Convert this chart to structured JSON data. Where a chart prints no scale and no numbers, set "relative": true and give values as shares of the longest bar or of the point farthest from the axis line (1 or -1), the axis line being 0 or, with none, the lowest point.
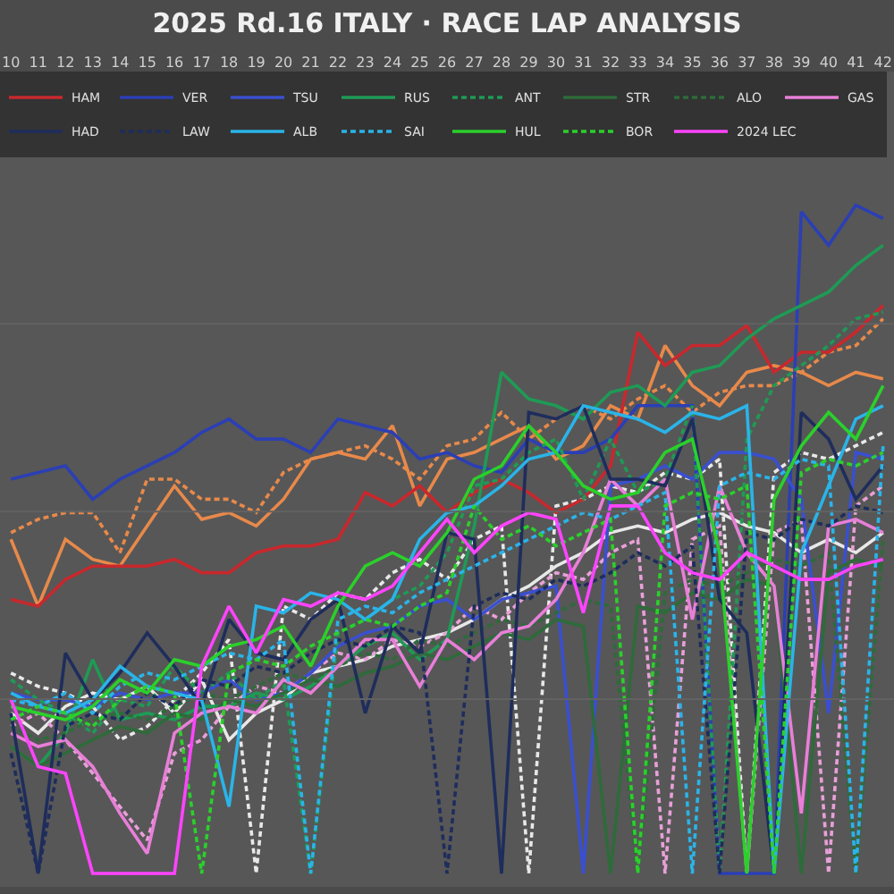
{
  "chart_data": {
    "type": "line",
    "title": "2025 Rd.16 ITALY · RACE LAP ANALYSIS",
    "relative": true,
    "grid": "y",
    "legend": "top left",
    "marker": "none",
    "x": [
      10,
      11,
      12,
      13,
      14,
      15,
      16,
      17,
      18,
      19,
      20,
      21,
      22,
      23,
      24,
      25,
      26,
      27,
      28,
      29,
      30,
      31,
      32,
      33,
      34,
      35,
      36,
      37,
      38,
      39,
      40,
      41,
      42
    ],
    "xlim": [
      9.6,
      42.4
    ],
    "xticks": [
      10,
      11,
      12,
      13,
      14,
      15,
      16,
      17,
      18,
      19,
      20,
      21,
      22,
      23,
      24,
      25,
      26,
      27,
      28,
      29,
      30,
      31,
      32,
      33,
      34,
      35,
      36,
      37,
      38,
      39,
      40,
      41,
      42
    ],
    "series": [
      {
        "color": "#e8894a",
        "line_style": "solid",
        "values": [
          0.5,
          0.4,
          0.5,
          0.47,
          0.46,
          0.52,
          0.58,
          0.53,
          0.54,
          0.52,
          0.56,
          0.62,
          0.63,
          0.62,
          0.67,
          0.55,
          0.62,
          0.63,
          0.65,
          0.67,
          0.62,
          0.64,
          0.7,
          0.68,
          0.79,
          0.73,
          0.7,
          0.75,
          0.76,
          0.75,
          0.73,
          0.75,
          0.74
        ]
      },
      {
        "color": "#e8894a",
        "line_style": "dashed",
        "values": [
          0.51,
          0.53,
          0.54,
          0.54,
          0.48,
          0.59,
          0.59,
          0.56,
          0.56,
          0.54,
          0.6,
          0.62,
          0.63,
          0.64,
          0.62,
          0.59,
          0.64,
          0.65,
          0.69,
          0.65,
          0.68,
          0.7,
          0.68,
          0.71,
          0.73,
          0.69,
          0.72,
          0.73,
          0.73,
          0.75,
          0.78,
          0.79,
          0.83
        ]
      },
      {
        "color": "#e8e8e8",
        "line_style": "solid",
        "values": [
          0.24,
          0.21,
          0.25,
          0.27,
          0.26,
          0.28,
          0.24,
          0.29,
          0.2,
          0.24,
          0.26,
          0.3,
          0.31,
          0.32,
          0.34,
          0.35,
          0.36,
          0.38,
          0.41,
          0.43,
          0.46,
          0.48,
          0.51,
          0.52,
          0.51,
          0.53,
          0.54,
          0.52,
          0.51,
          0.48,
          0.5,
          0.48,
          0.51
        ]
      },
      {
        "color": "#e8e8e8",
        "line_style": "dashed",
        "values": [
          0.3,
          0.28,
          0.27,
          0.25,
          0.2,
          0.22,
          0.26,
          0.3,
          0.35,
          0.0,
          0.4,
          0.38,
          0.42,
          0.41,
          0.45,
          0.47,
          0.44,
          0.5,
          0.52,
          0.0,
          0.55,
          0.56,
          0.58,
          0.57,
          0.6,
          0.59,
          0.62,
          0.0,
          0.6,
          0.63,
          0.62,
          0.64,
          0.66
        ]
      },
      {
        "color": "#e8a0d8",
        "line_style": "dashed",
        "values": [
          0.22,
          0.24,
          0.2,
          0.15,
          0.1,
          0.05,
          0.18,
          0.2,
          0.25,
          0.28,
          0.27,
          0.3,
          0.33,
          0.32,
          0.35,
          0.34,
          0.36,
          0.4,
          0.38,
          0.42,
          0.45,
          0.44,
          0.48,
          0.5,
          0.0,
          0.5,
          0.52,
          0.0,
          0.51,
          0.53,
          0.0,
          0.55,
          0.58
        ]
      },
      {
        "name": "HAM",
        "color": "#c8282d",
        "line_style": "solid",
        "values": [
          0.41,
          0.4,
          0.44,
          0.46,
          0.46,
          0.46,
          0.47,
          0.45,
          0.45,
          0.48,
          0.49,
          0.49,
          0.5,
          0.57,
          0.55,
          0.58,
          0.54,
          0.57,
          0.59,
          0.57,
          0.54,
          0.56,
          0.61,
          0.81,
          0.76,
          0.79,
          0.79,
          0.82,
          0.75,
          0.78,
          0.78,
          0.81,
          0.85
        ]
      },
      {
        "name": "VER",
        "color": "#2b3fb5",
        "line_style": "solid",
        "values": [
          0.59,
          0.6,
          0.61,
          0.56,
          0.59,
          0.61,
          0.63,
          0.66,
          0.68,
          0.65,
          0.65,
          0.63,
          0.68,
          0.67,
          0.66,
          0.62,
          0.63,
          0.61,
          0.6,
          0.65,
          0.63,
          0.63,
          0.65,
          0.7,
          0.7,
          0.7,
          0.0,
          0.0,
          0.0,
          0.99,
          0.94,
          1.0,
          0.98
        ]
      },
      {
        "name": "TSU",
        "color": "#3a4fd0",
        "line_style": "solid",
        "values": [
          0.27,
          0.26,
          0.26,
          0.25,
          0.27,
          0.26,
          0.27,
          0.27,
          0.29,
          0.26,
          0.27,
          0.3,
          0.34,
          0.36,
          0.37,
          0.4,
          0.41,
          0.38,
          0.41,
          0.42,
          0.43,
          0.0,
          0.58,
          0.59,
          0.61,
          0.59,
          0.63,
          0.63,
          0.62,
          0.56,
          0.24,
          0.63,
          0.62
        ]
      },
      {
        "name": "RUS",
        "color": "#1f9a55",
        "line_style": "solid",
        "values": [
          0.19,
          0.16,
          0.21,
          0.32,
          0.23,
          0.24,
          0.23,
          0.25,
          0.25,
          0.27,
          0.26,
          0.28,
          0.31,
          0.34,
          0.36,
          0.32,
          0.35,
          0.52,
          0.75,
          0.71,
          0.7,
          0.68,
          0.72,
          0.73,
          0.7,
          0.75,
          0.76,
          0.8,
          0.83,
          0.85,
          0.87,
          0.91,
          0.94
        ]
      },
      {
        "name": "ANT",
        "color": "#1f9a55",
        "line_style": "dashed",
        "values": [
          0.29,
          0.26,
          0.24,
          0.21,
          0.26,
          0.25,
          0.31,
          0.27,
          0.3,
          0.26,
          0.29,
          0.0,
          0.36,
          0.38,
          0.41,
          0.43,
          0.48,
          0.58,
          0.59,
          0.63,
          0.65,
          0.56,
          0.65,
          0.57,
          0.59,
          0.7,
          0.0,
          0.65,
          0.73,
          0.76,
          0.79,
          0.83,
          0.84
        ]
      },
      {
        "name": "STR",
        "color": "#2e6b3a",
        "line_style": "solid",
        "values": [
          0.19,
          0.16,
          0.18,
          0.2,
          0.22,
          0.21,
          0.24,
          0.23,
          0.26,
          0.25,
          0.27,
          0.29,
          0.28,
          0.3,
          0.31,
          0.33,
          0.32,
          0.34,
          0.36,
          0.35,
          0.38,
          0.37,
          0.0,
          0.4,
          0.39,
          0.42,
          0.41,
          0.44,
          0.43,
          0.0,
          0.45,
          0.47,
          0.46
        ]
      },
      {
        "name": "ALO",
        "color": "#2e6b3a",
        "line_style": "dashed",
        "values": [
          0.22,
          0.2,
          0.21,
          0.23,
          0.24,
          0.23,
          0.25,
          0.27,
          0.26,
          0.28,
          0.3,
          0.29,
          0.31,
          0.33,
          0.32,
          0.35,
          0.34,
          0.36,
          0.38,
          0.37,
          0.39,
          0.41,
          0.4,
          0.0,
          0.42,
          0.44,
          0.43,
          0.45,
          0.47,
          0.46,
          0.48,
          0.0,
          0.5
        ]
      },
      {
        "name": "GAS",
        "color": "#e87fd8",
        "line_style": "solid",
        "values": [
          0.21,
          0.19,
          0.2,
          0.16,
          0.09,
          0.03,
          0.21,
          0.24,
          0.25,
          0.24,
          0.29,
          0.27,
          0.31,
          0.35,
          0.35,
          0.28,
          0.35,
          0.32,
          0.36,
          0.37,
          0.41,
          0.48,
          0.59,
          0.55,
          0.59,
          0.38,
          0.58,
          0.48,
          0.43,
          0.09,
          0.52,
          0.53,
          0.51
        ]
      },
      {
        "name": "HAD",
        "color": "#1e2d5c",
        "line_style": "solid",
        "values": [
          0.24,
          0.0,
          0.33,
          0.26,
          0.3,
          0.36,
          0.31,
          0.25,
          0.38,
          0.33,
          0.32,
          0.38,
          0.41,
          0.24,
          0.37,
          0.33,
          0.51,
          0.5,
          0.0,
          0.69,
          0.68,
          0.7,
          0.59,
          0.59,
          0.58,
          0.68,
          0.41,
          0.36,
          0.0,
          0.69,
          0.65,
          0.56,
          0.61
        ]
      },
      {
        "name": "LAW",
        "color": "#1e2d5c",
        "line_style": "dashed",
        "values": [
          0.18,
          0.0,
          0.22,
          0.24,
          0.23,
          0.27,
          0.25,
          0.29,
          0.28,
          0.31,
          0.3,
          0.33,
          0.35,
          0.34,
          0.37,
          0.36,
          0.0,
          0.4,
          0.42,
          0.41,
          0.44,
          0.43,
          0.45,
          0.48,
          0.46,
          0.49,
          0.0,
          0.51,
          0.5,
          0.53,
          0.52,
          0.55,
          0.54
        ]
      },
      {
        "name": "ALB",
        "color": "#2ab4e8",
        "line_style": "solid",
        "values": [
          0.27,
          0.25,
          0.24,
          0.26,
          0.31,
          0.28,
          0.27,
          0.26,
          0.1,
          0.4,
          0.39,
          0.42,
          0.41,
          0.38,
          0.41,
          0.5,
          0.54,
          0.55,
          0.58,
          0.62,
          0.63,
          0.7,
          0.69,
          0.68,
          0.66,
          0.69,
          0.68,
          0.7,
          0.0,
          0.48,
          0.58,
          0.68,
          0.7
        ]
      },
      {
        "name": "SAI",
        "color": "#2ab4e8",
        "line_style": "dashed",
        "values": [
          0.26,
          0.25,
          0.27,
          0.24,
          0.28,
          0.3,
          0.29,
          0.31,
          0.33,
          0.32,
          0.35,
          0.0,
          0.38,
          0.4,
          0.39,
          0.42,
          0.44,
          0.46,
          0.48,
          0.5,
          0.52,
          0.54,
          0.53,
          0.55,
          0.57,
          0.0,
          0.58,
          0.6,
          0.59,
          0.62,
          0.61,
          0.0,
          0.64
        ]
      },
      {
        "name": "HUL",
        "color": "#2bd02b",
        "line_style": "solid",
        "values": [
          0.25,
          0.24,
          0.23,
          0.25,
          0.29,
          0.27,
          0.32,
          0.31,
          0.34,
          0.35,
          0.37,
          0.31,
          0.4,
          0.46,
          0.48,
          0.46,
          0.51,
          0.59,
          0.61,
          0.67,
          0.63,
          0.58,
          0.56,
          0.57,
          0.63,
          0.65,
          0.48,
          0.0,
          0.56,
          0.64,
          0.69,
          0.65,
          0.73
        ]
      },
      {
        "name": "BOR",
        "color": "#2bd02b",
        "line_style": "dashed",
        "values": [
          0.23,
          0.25,
          0.24,
          0.22,
          0.26,
          0.28,
          0.27,
          0.0,
          0.3,
          0.32,
          0.31,
          0.34,
          0.36,
          0.38,
          0.37,
          0.4,
          0.42,
          0.55,
          0.5,
          0.52,
          0.49,
          0.51,
          0.53,
          0.0,
          0.55,
          0.57,
          0.56,
          0.58,
          0.0,
          0.6,
          0.62,
          0.61,
          0.63
        ]
      },
      {
        "name": "2024 LEC",
        "color": "#ff44ff",
        "line_style": "solid",
        "values": [
          0.26,
          0.16,
          0.15,
          0.0,
          0.0,
          0.0,
          0.0,
          0.31,
          0.4,
          0.33,
          0.41,
          0.4,
          0.42,
          0.41,
          0.43,
          0.48,
          0.53,
          0.48,
          0.52,
          0.54,
          0.53,
          0.39,
          0.55,
          0.55,
          0.48,
          0.45,
          0.44,
          0.48,
          0.46,
          0.44,
          0.44,
          0.46,
          0.47
        ]
      }
    ]
  }
}
